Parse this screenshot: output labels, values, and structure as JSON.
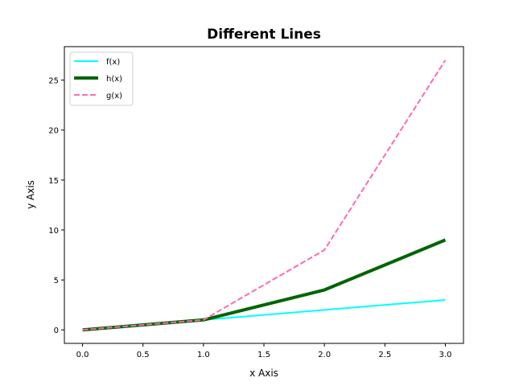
{
  "chart_data": {
    "type": "line",
    "title": "Different Lines",
    "xlabel": "x Axis",
    "ylabel": "y Axis",
    "x": [
      0,
      1,
      2,
      3
    ],
    "series": [
      {
        "name": "f(x)",
        "values": [
          0,
          1,
          2,
          3
        ],
        "color": "#00ffff",
        "linewidth": 2,
        "linestyle": "solid"
      },
      {
        "name": "h(x)",
        "values": [
          0,
          1,
          4,
          9
        ],
        "color": "#006400",
        "linewidth": 4,
        "linestyle": "solid"
      },
      {
        "name": "g(x)",
        "values": [
          0,
          1,
          8,
          27
        ],
        "color": "#ff69b4",
        "linewidth": 2,
        "linestyle": "dashed"
      }
    ],
    "xlim": [
      -0.15,
      3.15
    ],
    "ylim": [
      -1.35,
      28.35
    ],
    "xticks": [
      "0.0",
      "0.5",
      "1.0",
      "1.5",
      "2.0",
      "2.5",
      "3.0"
    ],
    "yticks": [
      "0",
      "5",
      "10",
      "15",
      "20",
      "25"
    ],
    "grid": false,
    "legend_position": "upper left"
  }
}
